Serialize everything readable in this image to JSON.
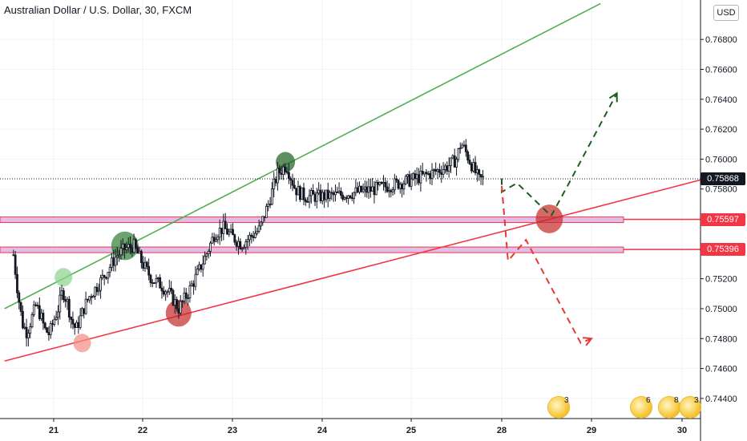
{
  "header": {
    "title": "Australian Dollar / U.S. Dollar, 30, FXCM",
    "currency": "USD"
  },
  "price_tags": [
    {
      "value": "0.75868",
      "color": "#131722"
    },
    {
      "value": "0.75597",
      "color": "#f23645"
    },
    {
      "value": "0.75396",
      "color": "#f23645"
    }
  ],
  "events": [
    {
      "count": "3"
    },
    {
      "count": "6"
    },
    {
      "count": "8"
    },
    {
      "count": "3"
    }
  ],
  "colors": {
    "support_line": "#f23645",
    "trend_line": "#4caf50",
    "zone_fill": "#e1bee7",
    "zone_border": "#f23645",
    "arrow_green": "#1b5e20",
    "arrow_red": "#e53935",
    "candles": "#131722"
  },
  "chart_data": {
    "type": "candlestick",
    "symbol": "AUDUSD",
    "timeframe": "30",
    "xlabel": "",
    "ylabel": "",
    "x_ticks": [
      "21",
      "22",
      "23",
      "24",
      "25",
      "28",
      "29",
      "30"
    ],
    "y_ticks": [
      "0.76800",
      "0.76600",
      "0.76400",
      "0.76200",
      "0.76000",
      "0.75800",
      "0.75600",
      "0.75400",
      "0.75200",
      "0.75000",
      "0.74800",
      "0.74600",
      "0.74400"
    ],
    "ylim": [
      0.7426,
      0.7701
    ],
    "last_price": 0.75868,
    "levels": [
      0.75597,
      0.75396
    ],
    "close_path": [
      {
        "t": 20.55,
        "p": 0.7536
      },
      {
        "t": 20.6,
        "p": 0.751
      },
      {
        "t": 20.65,
        "p": 0.749
      },
      {
        "t": 20.7,
        "p": 0.7484
      },
      {
        "t": 20.75,
        "p": 0.7493
      },
      {
        "t": 20.8,
        "p": 0.7502
      },
      {
        "t": 20.85,
        "p": 0.7496
      },
      {
        "t": 20.9,
        "p": 0.7486
      },
      {
        "t": 20.95,
        "p": 0.7483
      },
      {
        "t": 21.0,
        "p": 0.7492
      },
      {
        "t": 21.05,
        "p": 0.75
      },
      {
        "t": 21.1,
        "p": 0.7512
      },
      {
        "t": 21.15,
        "p": 0.7505
      },
      {
        "t": 21.2,
        "p": 0.7492
      },
      {
        "t": 21.25,
        "p": 0.7486
      },
      {
        "t": 21.3,
        "p": 0.7494
      },
      {
        "t": 21.35,
        "p": 0.7502
      },
      {
        "t": 21.4,
        "p": 0.7508
      },
      {
        "t": 21.5,
        "p": 0.7516
      },
      {
        "t": 21.6,
        "p": 0.7525
      },
      {
        "t": 21.7,
        "p": 0.7535
      },
      {
        "t": 21.8,
        "p": 0.754
      },
      {
        "t": 21.9,
        "p": 0.7542
      },
      {
        "t": 22.0,
        "p": 0.753
      },
      {
        "t": 22.1,
        "p": 0.752
      },
      {
        "t": 22.2,
        "p": 0.7516
      },
      {
        "t": 22.3,
        "p": 0.751
      },
      {
        "t": 22.4,
        "p": 0.75
      },
      {
        "t": 22.5,
        "p": 0.751
      },
      {
        "t": 22.6,
        "p": 0.7522
      },
      {
        "t": 22.7,
        "p": 0.7535
      },
      {
        "t": 22.8,
        "p": 0.755
      },
      {
        "t": 22.9,
        "p": 0.7554
      },
      {
        "t": 23.0,
        "p": 0.7548
      },
      {
        "t": 23.1,
        "p": 0.7543
      },
      {
        "t": 23.2,
        "p": 0.7548
      },
      {
        "t": 23.3,
        "p": 0.7553
      },
      {
        "t": 23.4,
        "p": 0.757
      },
      {
        "t": 23.5,
        "p": 0.759
      },
      {
        "t": 23.6,
        "p": 0.7596
      },
      {
        "t": 23.7,
        "p": 0.758
      },
      {
        "t": 23.8,
        "p": 0.7575
      },
      {
        "t": 24.0,
        "p": 0.7575
      },
      {
        "t": 24.2,
        "p": 0.7576
      },
      {
        "t": 24.4,
        "p": 0.7578
      },
      {
        "t": 24.6,
        "p": 0.758
      },
      {
        "t": 24.8,
        "p": 0.7583
      },
      {
        "t": 25.0,
        "p": 0.7586
      },
      {
        "t": 25.2,
        "p": 0.759
      },
      {
        "t": 25.4,
        "p": 0.7595
      },
      {
        "t": 25.5,
        "p": 0.76
      },
      {
        "t": 25.55,
        "p": 0.7611
      },
      {
        "t": 25.6,
        "p": 0.7605
      },
      {
        "t": 25.7,
        "p": 0.7592
      },
      {
        "t": 25.75,
        "p": 0.7586
      },
      {
        "t": 25.8,
        "p": 0.7587
      }
    ],
    "lines": [
      {
        "name": "",
        "color": "#4caf50",
        "points": [
          {
            "t": 20.45,
            "p": 0.75
          },
          {
            "t": 29.1,
            "p": 0.7704
          }
        ]
      },
      {
        "name": "",
        "color": "#f23645",
        "points": [
          {
            "t": 20.45,
            "p": 0.7465
          },
          {
            "t": 30.2,
            "p": 0.7586
          }
        ]
      }
    ],
    "highlight_circles": [
      {
        "t": 21.11,
        "p": 0.7521,
        "color": "#8bd38b"
      },
      {
        "t": 21.32,
        "p": 0.7477,
        "color": "#f28b82"
      },
      {
        "t": 21.8,
        "p": 0.7542,
        "color": "#2e7d32"
      },
      {
        "t": 22.4,
        "p": 0.7497,
        "color": "#c62828"
      },
      {
        "t": 23.59,
        "p": 0.7598,
        "color": "#1b5e20"
      },
      {
        "t": 28.53,
        "p": 0.756,
        "color": "#c62828"
      }
    ],
    "projections": [
      {
        "style": "dashed",
        "color": "#1b5e20",
        "points": [
          {
            "t": 27.8,
            "p": 0.7587
          },
          {
            "t": 28.0,
            "p": 0.7578
          },
          {
            "t": 28.17,
            "p": 0.7584
          },
          {
            "t": 28.55,
            "p": 0.7562
          },
          {
            "t": 28.75,
            "p": 0.7584
          },
          {
            "t": 29.28,
            "p": 0.7644
          }
        ]
      },
      {
        "style": "dashed",
        "color": "#e53935",
        "points": [
          {
            "t": 27.78,
            "p": 0.7582
          },
          {
            "t": 28.07,
            "p": 0.7532
          },
          {
            "t": 28.27,
            "p": 0.7546
          },
          {
            "t": 28.88,
            "p": 0.7477
          },
          {
            "t": 29.0,
            "p": 0.748
          }
        ]
      }
    ]
  }
}
